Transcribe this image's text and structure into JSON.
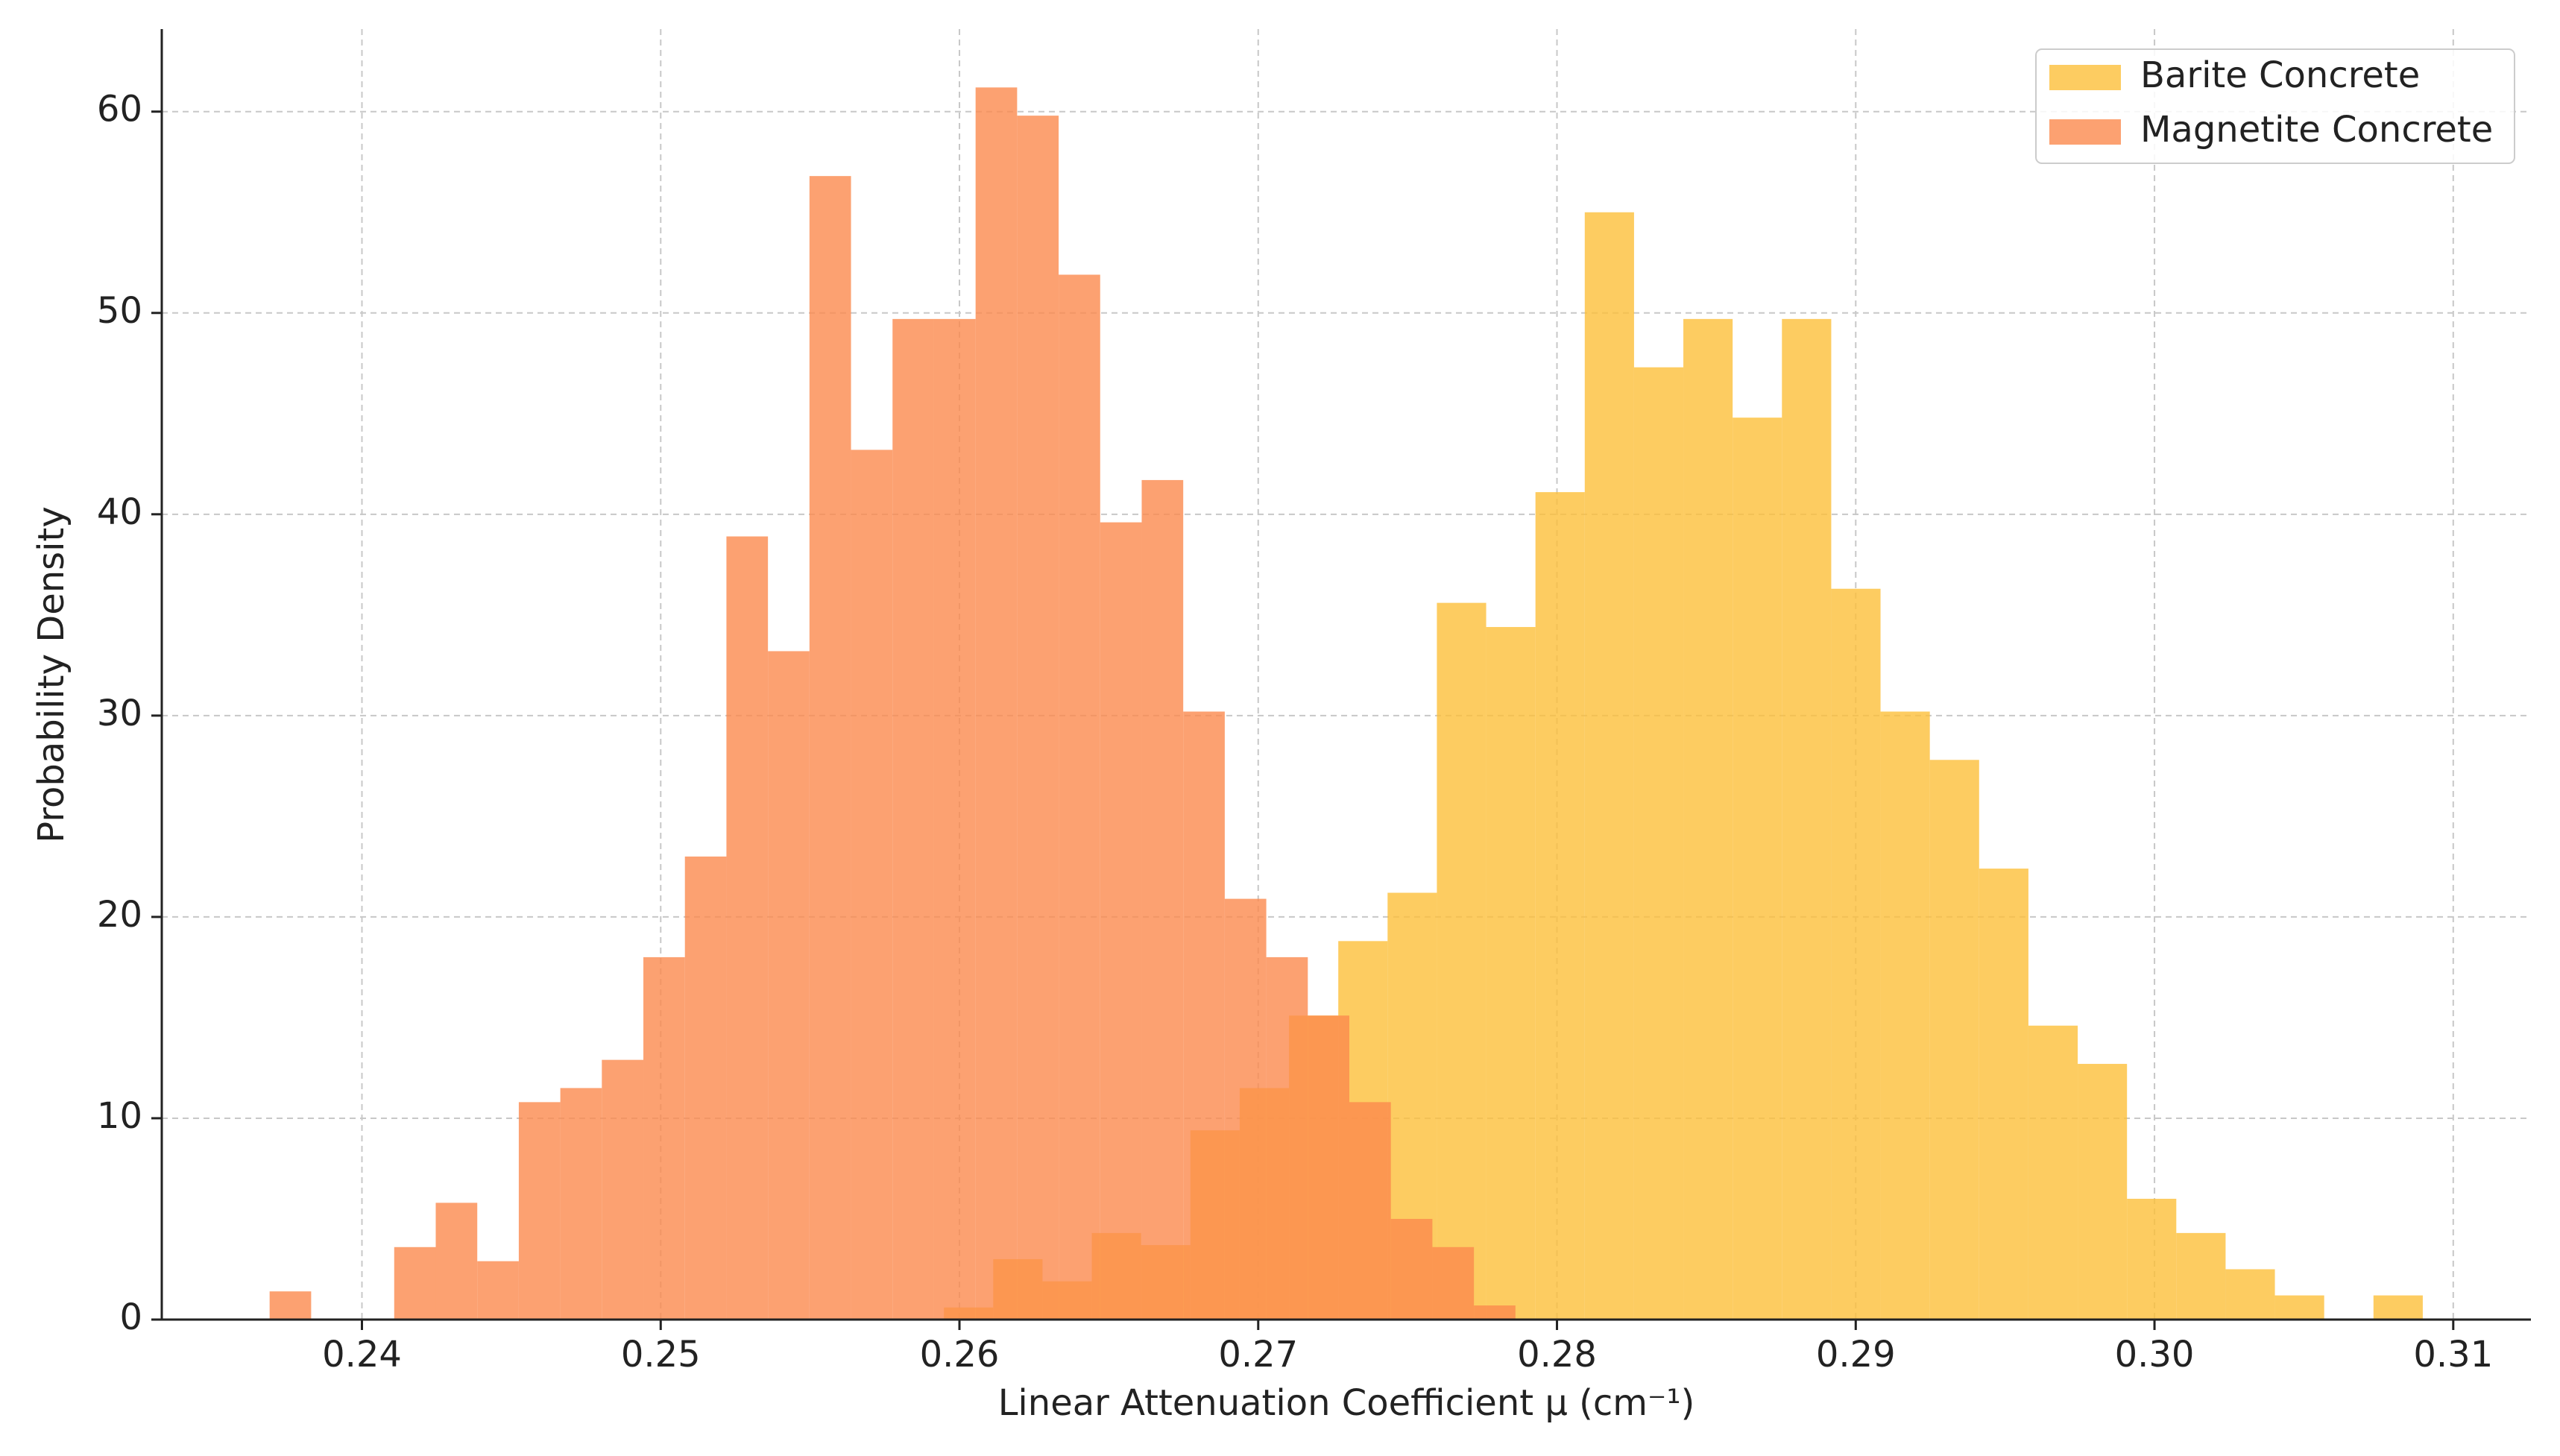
{
  "chart_data": {
    "type": "histogram",
    "x_label": "Linear Attenuation Coefficient μ (cm⁻¹)",
    "y_label": "Probability Density",
    "series": [
      {
        "name": "Barite Concrete",
        "color": "#fdbf3a",
        "bins": [
          0.25948,
          0.26113,
          0.26278,
          0.26443,
          0.26608,
          0.26773,
          0.26938,
          0.27103,
          0.27268,
          0.27433,
          0.27598,
          0.27763,
          0.27928,
          0.28093,
          0.28258,
          0.28423,
          0.28588,
          0.28753,
          0.28918,
          0.29083,
          0.29248,
          0.29413,
          0.29578,
          0.29743,
          0.29908,
          0.30073,
          0.30238,
          0.30403,
          0.30568,
          0.30733,
          0.30898
        ],
        "values": [
          0.6,
          3.0,
          1.9,
          4.3,
          3.7,
          9.4,
          11.5,
          15.1,
          18.8,
          21.2,
          35.6,
          34.4,
          41.1,
          55.0,
          47.3,
          49.7,
          44.8,
          49.7,
          36.3,
          30.2,
          27.8,
          22.4,
          14.6,
          12.7,
          6.0,
          4.3,
          2.5,
          1.2,
          0,
          1.2
        ]
      },
      {
        "name": "Magnetite Concrete",
        "color": "#fb8a4e",
        "bins": [
          0.23691,
          0.2383,
          0.23969,
          0.24108,
          0.24247,
          0.24386,
          0.24525,
          0.24664,
          0.24803,
          0.24942,
          0.25081,
          0.2522,
          0.25359,
          0.25498,
          0.25637,
          0.25776,
          0.25915,
          0.26054,
          0.26193,
          0.26332,
          0.26471,
          0.2661,
          0.26749,
          0.26888,
          0.27027,
          0.27166,
          0.27305,
          0.27444,
          0.27583,
          0.27722,
          0.27861
        ],
        "values": [
          1.4,
          0,
          0,
          3.6,
          5.8,
          2.9,
          10.8,
          11.5,
          12.9,
          18.0,
          23.0,
          38.9,
          33.2,
          56.8,
          43.2,
          49.7,
          49.7,
          61.2,
          59.8,
          51.9,
          39.6,
          41.7,
          30.2,
          20.9,
          18.0,
          15.1,
          10.8,
          5.0,
          3.6,
          0.7
        ]
      }
    ],
    "xlim": [
      0.2333,
      0.3126
    ],
    "ylim": [
      0,
      64.1
    ],
    "xticks": [
      0.24,
      0.25,
      0.26,
      0.27,
      0.28,
      0.29,
      {
        "value": 0.3,
        "label": "0.30"
      },
      0.31
    ],
    "yticks": [
      0,
      10,
      20,
      30,
      40,
      50,
      60
    ],
    "grid": true,
    "legend": "upper right"
  }
}
